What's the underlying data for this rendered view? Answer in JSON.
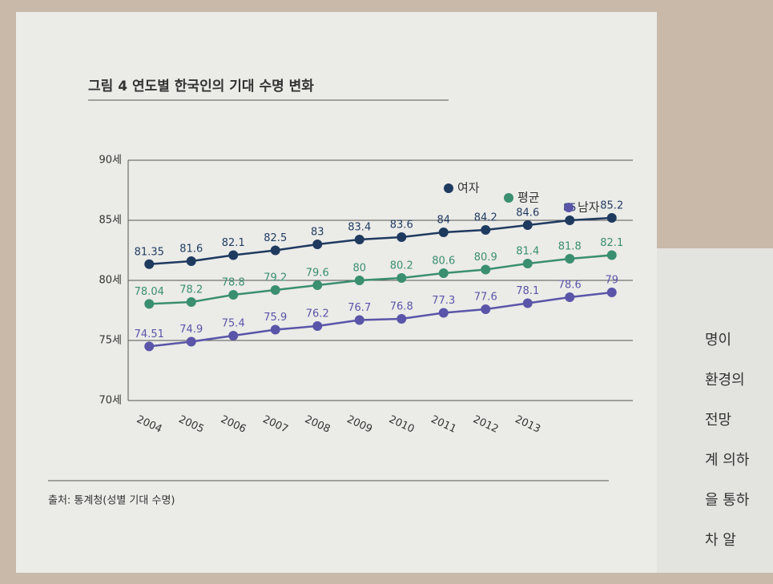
{
  "chart_data": {
    "type": "line",
    "title": "그림 4 연도별 한국인의 기대 수명 변화",
    "source": "출처: 통계청(성별 기대 수명)",
    "categories": [
      "2004",
      "2005",
      "2006",
      "2007",
      "2008",
      "2009",
      "2010",
      "2011",
      "2012",
      "2013",
      null,
      null
    ],
    "series": [
      {
        "name": "여자",
        "color": "#1f3a5f",
        "values": [
          81.35,
          81.6,
          82.1,
          82.5,
          83,
          83.4,
          83.6,
          84,
          84.2,
          84.6,
          85,
          85.2
        ]
      },
      {
        "name": "평균",
        "color": "#3a8f70",
        "values": [
          78.04,
          78.2,
          78.8,
          79.2,
          79.6,
          80,
          80.2,
          80.6,
          80.9,
          81.4,
          81.8,
          82.1
        ]
      },
      {
        "name": "남자",
        "color": "#5a55a8",
        "values": [
          74.51,
          74.9,
          75.4,
          75.9,
          76.2,
          76.7,
          76.8,
          77.3,
          77.6,
          78.1,
          78.6,
          79
        ]
      }
    ],
    "ylim": [
      70,
      90
    ],
    "yticks": [
      {
        "value": 70,
        "label": "70세"
      },
      {
        "value": 75,
        "label": "75세"
      },
      {
        "value": 80,
        "label": "80세"
      },
      {
        "value": 85,
        "label": "85세"
      },
      {
        "value": 90,
        "label": "90세"
      }
    ],
    "grid": true,
    "legend": "top-right"
  },
  "facing_page_text": [
    "명이",
    "환경의",
    "전망",
    "계 의하",
    "을 통하",
    "차 알"
  ]
}
